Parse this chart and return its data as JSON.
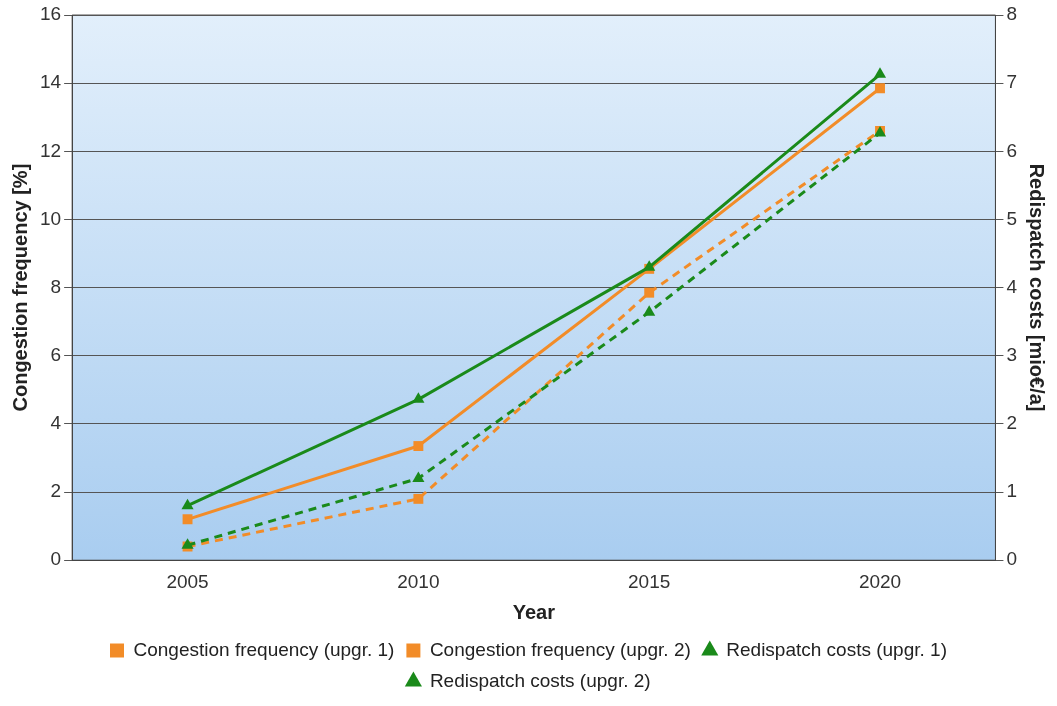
{
  "chart_data": {
    "type": "line",
    "xlabel": "Year",
    "ylabel": "Congestion frequency [%]",
    "y2label": "Redispatch costs [mio€/a]",
    "categories": [
      "2005",
      "2010",
      "2015",
      "2020"
    ],
    "series": [
      {
        "name": "Congestion frequency (upgr. 1)",
        "color": "#f28c28",
        "values": [
          1.2,
          3.35,
          8.55,
          13.85
        ],
        "marker": "square",
        "line_style": "solid"
      },
      {
        "name": "Congestion frequency (upgr. 2)",
        "color": "#f28c28",
        "values": [
          0.4,
          1.8,
          7.85,
          12.6
        ],
        "marker": "square",
        "line_style": "dashed"
      },
      {
        "name": "Redispatch costs (upgr. 1)",
        "color": "#1a8a1a",
        "values": [
          0.8,
          2.36,
          4.3,
          7.13
        ],
        "marker": "triangle",
        "line_style": "solid",
        "axis": "y2"
      },
      {
        "name": "Redispatch costs (upgr. 2)",
        "color": "#1a8a1a",
        "values": [
          0.22,
          1.2,
          3.64,
          6.27
        ],
        "marker": "triangle",
        "line_style": "dashed",
        "axis": "y2"
      }
    ],
    "ylim": [
      0,
      16
    ],
    "yticks": [
      0,
      2,
      4,
      6,
      8,
      10,
      12,
      14,
      16
    ],
    "y2lim": [
      0,
      8
    ],
    "y2ticks": [
      0,
      1,
      2,
      3,
      4,
      5,
      6,
      7,
      8
    ],
    "grid": "y",
    "legend": "bottom"
  }
}
